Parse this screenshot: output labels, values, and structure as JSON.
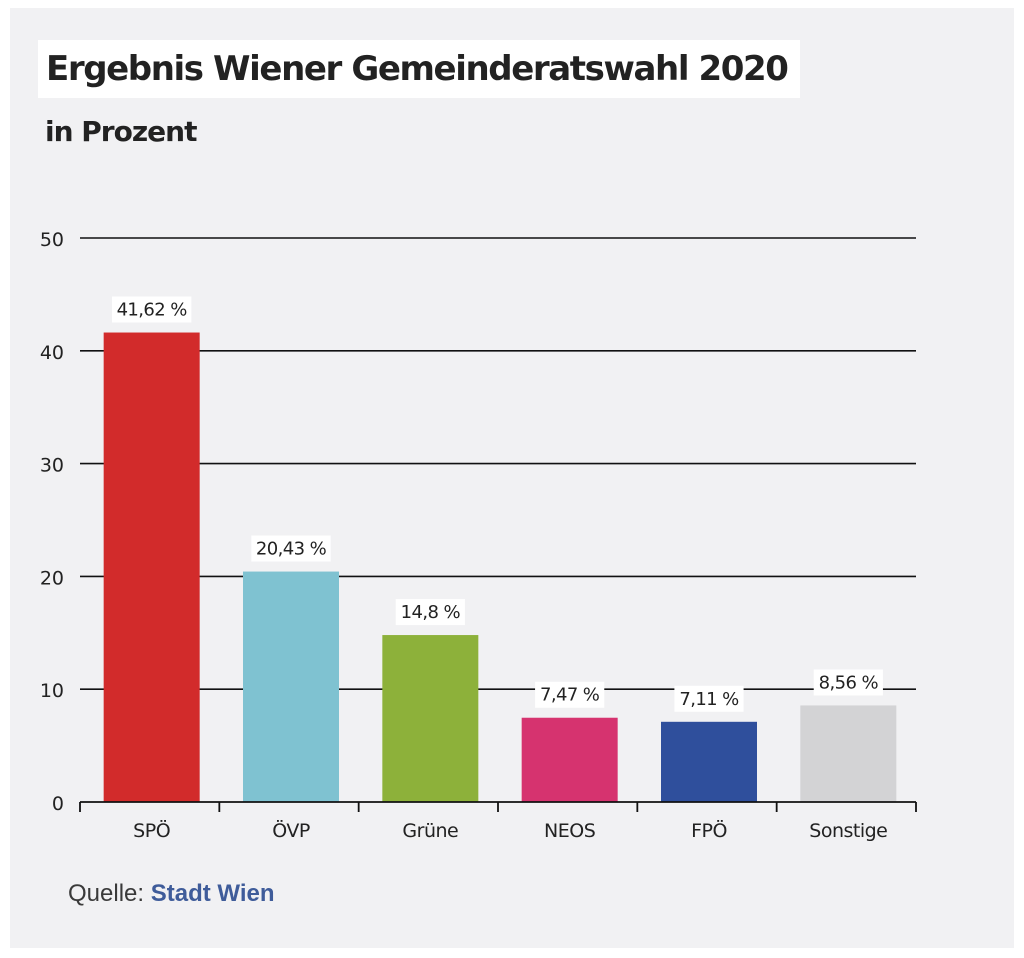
{
  "chart_data": {
    "type": "bar",
    "title": "Ergebnis Wiener Gemeinderatswahl 2020",
    "subtitle": "in Prozent",
    "categories": [
      "SPÖ",
      "ÖVP",
      "Grüne",
      "NEOS",
      "FPÖ",
      "Sonstige"
    ],
    "values": [
      41.62,
      20.43,
      14.8,
      7.47,
      7.11,
      8.56
    ],
    "value_labels": [
      "41,62 %",
      "20,43 %",
      "14,8 %",
      "7,47 %",
      "7,11 %",
      "8,56 %"
    ],
    "colors": [
      "#d22b2b",
      "#7fc2d1",
      "#8db13a",
      "#d6336f",
      "#2f4f9c",
      "#d3d3d5"
    ],
    "xlabel": "",
    "ylabel": "",
    "ylim": [
      0,
      50
    ],
    "yticks": [
      0,
      10,
      20,
      30,
      40,
      50
    ],
    "grid": true,
    "legend": "none"
  },
  "source": {
    "label": "Quelle:",
    "link_text": "Stadt Wien"
  },
  "colors": {
    "background": "#f1f1f3",
    "gridline": "#111111",
    "text": "#222222",
    "link": "#3f5c9a"
  }
}
